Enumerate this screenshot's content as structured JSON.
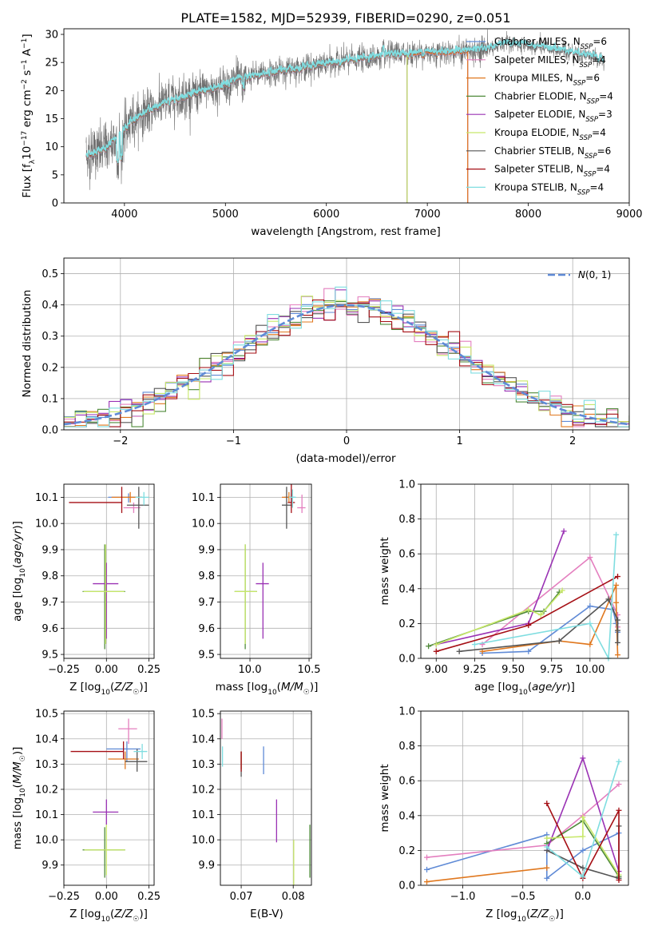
{
  "title": "PLATE=1582, MJD=52939, FIBERID=0290, z=0.051",
  "colors": {
    "chabrier_miles": "#5f8ad6",
    "salpeter_miles": "#e47fbf",
    "kroupa_miles": "#e0781f",
    "chabrier_elodie": "#4f8a3a",
    "salpeter_elodie": "#9a32b4",
    "kroupa_elodie": "#c8e86a",
    "chabrier_stelib": "#555555",
    "salpeter_stelib": "#a50f15",
    "kroupa_stelib": "#7fdde0",
    "normal": "#5f8ad6"
  },
  "chart_data": [
    {
      "id": "spectrum",
      "type": "line",
      "xlabel": "wavelength [Angstrom, rest frame]",
      "ylabel": "Flux [f_λ10⁻¹⁷ erg cm⁻² s⁻¹ A⁻¹]",
      "xlim": [
        3400,
        9000
      ],
      "ylim": [
        0,
        31
      ],
      "xticks": [
        4000,
        5000,
        6000,
        7000,
        8000,
        9000
      ],
      "yticks": [
        0,
        5,
        10,
        15,
        20,
        25,
        30
      ],
      "grid": false,
      "legend_position": "right",
      "continuum": {
        "x": [
          3620,
          3800,
          3950,
          4100,
          4300,
          4500,
          4700,
          4900,
          5100,
          5300,
          5500,
          5700,
          5900,
          6100,
          6300,
          6500,
          6700,
          6900,
          7100,
          7300,
          7450,
          7600,
          7800,
          8000,
          8200,
          8400,
          8600,
          8750
        ],
        "y": [
          8.5,
          9.5,
          12.0,
          15.0,
          17.0,
          18.5,
          19.5,
          20.5,
          21.8,
          22.7,
          23.4,
          24.0,
          24.5,
          25.0,
          25.6,
          26.1,
          26.4,
          26.7,
          26.9,
          27.0,
          27.1,
          27.6,
          28.4,
          28.0,
          27.5,
          27.0,
          26.3,
          25.2
        ]
      },
      "series": [
        {
          "name": "Chabrier MILES, N_SSP=6",
          "key": "chabrier_miles"
        },
        {
          "name": "Salpeter MILES, N_SSP=4",
          "key": "salpeter_miles"
        },
        {
          "name": "Kroupa MILES, N_SSP=6",
          "key": "kroupa_miles"
        },
        {
          "name": "Chabrier ELODIE, N_SSP=4",
          "key": "chabrier_elodie"
        },
        {
          "name": "Salpeter ELODIE, N_SSP=3",
          "key": "salpeter_elodie"
        },
        {
          "name": "Kroupa ELODIE, N_SSP=4",
          "key": "kroupa_elodie"
        },
        {
          "name": "Chabrier STELIB, N_SSP=6",
          "key": "chabrier_stelib"
        },
        {
          "name": "Salpeter STELIB, N_SSP=4",
          "key": "salpeter_stelib"
        },
        {
          "name": "Kroupa STELIB, N_SSP=4",
          "key": "kroupa_stelib"
        }
      ],
      "model_end": {
        "miles": 7400,
        "elodie": 6800
      }
    },
    {
      "id": "residual_hist",
      "type": "line",
      "xlabel": "(data-model)/error",
      "ylabel": "Normed distribution",
      "xlim": [
        -2.5,
        2.5
      ],
      "ylim": [
        0,
        0.55
      ],
      "xticks": [
        -2,
        -1,
        0,
        1,
        2
      ],
      "yticks": [
        0.0,
        0.1,
        0.2,
        0.3,
        0.4,
        0.5
      ],
      "grid": true,
      "legend_position": "top-right",
      "normal_label": "N(0,1)",
      "bin_width": 0.1
    },
    {
      "id": "age_vs_Z",
      "type": "scatter",
      "xlabel": "Z [log10(Z/Z☉)]",
      "ylabel": "age [log10(age/yr)]",
      "xlim": [
        -0.25,
        0.28
      ],
      "ylim": [
        9.485,
        10.15
      ],
      "xticks": [
        -0.25,
        0.0,
        0.25
      ],
      "yticks": [
        9.5,
        9.6,
        9.7,
        9.8,
        9.9,
        10.0,
        10.1
      ],
      "grid": true,
      "points": [
        {
          "key": "chabrier_miles",
          "x": 0.13,
          "y": 10.1,
          "xe": [
            0.12,
            0.08
          ],
          "ye": [
            0.02,
            0.015
          ]
        },
        {
          "key": "salpeter_miles",
          "x": 0.16,
          "y": 10.06,
          "xe": [
            0.06,
            0.04
          ],
          "ye": [
            0.02,
            0.02
          ]
        },
        {
          "key": "kroupa_miles",
          "x": 0.14,
          "y": 10.1,
          "xe": [
            0.11,
            0.07
          ],
          "ye": [
            0.02,
            0.02
          ]
        },
        {
          "key": "chabrier_elodie",
          "x": -0.01,
          "y": 9.74,
          "xe": [
            0.13,
            0.12
          ],
          "ye": [
            0.22,
            0.18
          ]
        },
        {
          "key": "salpeter_elodie",
          "x": 0.0,
          "y": 9.77,
          "xe": [
            0.08,
            0.07
          ],
          "ye": [
            0.21,
            0.08
          ]
        },
        {
          "key": "kroupa_elodie",
          "x": -0.005,
          "y": 9.74,
          "xe": [
            0.13,
            0.11
          ],
          "ye": [
            0.2,
            0.18
          ]
        },
        {
          "key": "chabrier_stelib",
          "x": 0.19,
          "y": 10.07,
          "xe": [
            0.07,
            0.06
          ],
          "ye": [
            0.09,
            0.07
          ]
        },
        {
          "key": "salpeter_stelib",
          "x": 0.09,
          "y": 10.08,
          "xe": [
            0.31,
            0.0
          ],
          "ye": [
            0.04,
            0.06
          ]
        },
        {
          "key": "kroupa_stelib",
          "x": 0.22,
          "y": 10.1,
          "xe": [
            0.05,
            0.03
          ],
          "ye": [
            0.03,
            0.02
          ]
        }
      ]
    },
    {
      "id": "age_vs_mass",
      "type": "scatter",
      "xlabel": "mass [log10(M/M☉)]",
      "ylabel": "",
      "xlim": [
        9.75,
        10.52
      ],
      "ylim": [
        9.485,
        10.15
      ],
      "xticks": [
        10.0,
        10.5
      ],
      "yticks": [
        9.5,
        9.6,
        9.7,
        9.8,
        9.9,
        10.0,
        10.1
      ],
      "grid": true,
      "points": [
        {
          "key": "chabrier_miles",
          "x": 10.35,
          "y": 10.1,
          "xe": [
            0.06,
            0.03
          ],
          "ye": [
            0.02,
            0.015
          ]
        },
        {
          "key": "salpeter_miles",
          "x": 10.44,
          "y": 10.06,
          "xe": [
            0.04,
            0.03
          ],
          "ye": [
            0.02,
            0.05
          ]
        },
        {
          "key": "kroupa_miles",
          "x": 10.33,
          "y": 10.1,
          "xe": [
            0.06,
            0.03
          ],
          "ye": [
            0.02,
            0.02
          ]
        },
        {
          "key": "chabrier_elodie",
          "x": 9.96,
          "y": 9.74,
          "xe": [
            0.09,
            0.1
          ],
          "ye": [
            0.22,
            0.18
          ]
        },
        {
          "key": "salpeter_elodie",
          "x": 10.11,
          "y": 9.77,
          "xe": [
            0.06,
            0.05
          ],
          "ye": [
            0.21,
            0.08
          ]
        },
        {
          "key": "kroupa_elodie",
          "x": 9.96,
          "y": 9.74,
          "xe": [
            0.09,
            0.1
          ],
          "ye": [
            0.2,
            0.18
          ]
        },
        {
          "key": "chabrier_stelib",
          "x": 10.31,
          "y": 10.07,
          "xe": [
            0.04,
            0.05
          ],
          "ye": [
            0.09,
            0.07
          ]
        },
        {
          "key": "salpeter_stelib",
          "x": 10.35,
          "y": 10.08,
          "xe": [
            0.03,
            0.03
          ],
          "ye": [
            0.04,
            0.07
          ]
        },
        {
          "key": "kroupa_stelib",
          "x": 10.36,
          "y": 10.1,
          "xe": [
            0.03,
            0.03
          ],
          "ye": [
            0.04,
            0.03
          ]
        }
      ]
    },
    {
      "id": "weight_vs_age",
      "type": "line",
      "xlabel": "age [log10(age/yr)]",
      "ylabel": "mass weight",
      "xlim": [
        8.9,
        10.25
      ],
      "ylim": [
        0,
        1.0
      ],
      "xticks": [
        9.0,
        9.25,
        9.5,
        9.75,
        10.0
      ],
      "yticks": [
        0.0,
        0.2,
        0.4,
        0.6,
        0.8,
        1.0
      ],
      "grid": true,
      "series": [
        {
          "key": "chabrier_miles",
          "x": [
            9.3,
            9.6,
            10.0,
            10.15,
            10.17,
            10.18
          ],
          "y": [
            0.03,
            0.04,
            0.3,
            0.28,
            0.2,
            0.15
          ]
        },
        {
          "key": "salpeter_miles",
          "x": [
            9.3,
            10.0,
            10.18,
            10.18
          ],
          "y": [
            0.08,
            0.58,
            0.25,
            0.18
          ]
        },
        {
          "key": "kroupa_miles",
          "x": [
            9.3,
            9.8,
            10.0,
            10.17,
            10.17,
            10.18
          ],
          "y": [
            0.04,
            0.1,
            0.08,
            0.42,
            0.32,
            0.02
          ]
        },
        {
          "key": "chabrier_elodie",
          "x": [
            8.95,
            9.6,
            9.7,
            9.8
          ],
          "y": [
            0.07,
            0.27,
            0.27,
            0.38
          ]
        },
        {
          "key": "salpeter_elodie",
          "x": [
            9.0,
            9.6,
            9.83
          ],
          "y": [
            0.08,
            0.2,
            0.73
          ]
        },
        {
          "key": "kroupa_elodie",
          "x": [
            9.0,
            9.6,
            9.68,
            9.82
          ],
          "y": [
            0.08,
            0.28,
            0.25,
            0.39
          ]
        },
        {
          "key": "chabrier_stelib",
          "x": [
            9.15,
            9.8,
            10.12,
            10.18,
            10.18,
            10.18
          ],
          "y": [
            0.04,
            0.1,
            0.34,
            0.22,
            0.16,
            0.09
          ]
        },
        {
          "key": "salpeter_stelib",
          "x": [
            9.0,
            9.6,
            10.18
          ],
          "y": [
            0.04,
            0.19,
            0.47
          ]
        },
        {
          "key": "kroupa_stelib",
          "x": [
            9.25,
            10.0,
            10.12,
            10.17
          ],
          "y": [
            0.08,
            0.2,
            0.0,
            0.71
          ]
        }
      ]
    },
    {
      "id": "mass_vs_Z",
      "type": "scatter",
      "xlabel": "Z [log10(Z/Z☉)]",
      "ylabel": "mass [log10(M/M☉)]",
      "xlim": [
        -0.25,
        0.28
      ],
      "ylim": [
        9.82,
        10.51
      ],
      "xticks": [
        -0.25,
        0.0,
        0.25
      ],
      "yticks": [
        9.9,
        10.0,
        10.1,
        10.2,
        10.3,
        10.4,
        10.5
      ],
      "grid": true,
      "points": [
        {
          "key": "chabrier_miles",
          "x": 0.12,
          "y": 10.36,
          "xe": [
            0.12,
            0.08
          ],
          "ye": [
            0.05,
            0.03
          ]
        },
        {
          "key": "salpeter_miles",
          "x": 0.13,
          "y": 10.44,
          "xe": [
            0.06,
            0.05
          ],
          "ye": [
            0.06,
            0.04
          ]
        },
        {
          "key": "kroupa_miles",
          "x": 0.11,
          "y": 10.32,
          "xe": [
            0.1,
            0.08
          ],
          "ye": [
            0.04,
            0.03
          ]
        },
        {
          "key": "chabrier_elodie",
          "x": -0.01,
          "y": 9.96,
          "xe": [
            0.13,
            0.12
          ],
          "ye": [
            0.11,
            0.09
          ]
        },
        {
          "key": "salpeter_elodie",
          "x": 0.0,
          "y": 10.11,
          "xe": [
            0.08,
            0.07
          ],
          "ye": [
            0.05,
            0.05
          ]
        },
        {
          "key": "kroupa_elodie",
          "x": 0.0,
          "y": 9.96,
          "xe": [
            0.13,
            0.11
          ],
          "ye": [
            0.1,
            0.1
          ]
        },
        {
          "key": "chabrier_stelib",
          "x": 0.18,
          "y": 10.31,
          "xe": [
            0.07,
            0.06
          ],
          "ye": [
            0.04,
            0.05
          ]
        },
        {
          "key": "salpeter_stelib",
          "x": 0.1,
          "y": 10.35,
          "xe": [
            0.31,
            0.0
          ],
          "ye": [
            0.03,
            0.04
          ]
        },
        {
          "key": "kroupa_stelib",
          "x": 0.21,
          "y": 10.35,
          "xe": [
            0.05,
            0.03
          ],
          "ye": [
            0.03,
            0.03
          ]
        }
      ]
    },
    {
      "id": "mass_vs_ebv",
      "type": "scatter",
      "xlabel": "E(B-V)",
      "ylabel": "",
      "xlim": [
        0.066,
        0.0835
      ],
      "ylim": [
        9.82,
        10.51
      ],
      "xticks": [
        0.07,
        0.08
      ],
      "yticks": [
        9.9,
        10.0,
        10.1,
        10.2,
        10.3,
        10.4,
        10.5
      ],
      "grid": true,
      "points": [
        {
          "key": "chabrier_miles",
          "x": 0.0743,
          "y": 10.31,
          "xe": [
            0,
            0
          ],
          "ye": [
            0.05,
            0.06
          ]
        },
        {
          "key": "salpeter_miles",
          "x": 0.0663,
          "y": 10.44,
          "xe": [
            0,
            0
          ],
          "ye": [
            0.04,
            0.04
          ]
        },
        {
          "key": "kroupa_miles",
          "x": 0.07,
          "y": 10.32,
          "xe": [
            0,
            0
          ],
          "ye": [
            0.04,
            0.03
          ]
        },
        {
          "key": "chabrier_elodie",
          "x": 0.0832,
          "y": 9.95,
          "xe": [
            0,
            0
          ],
          "ye": [
            0.1,
            0.11
          ]
        },
        {
          "key": "salpeter_elodie",
          "x": 0.0768,
          "y": 10.07,
          "xe": [
            0,
            0
          ],
          "ye": [
            0.08,
            0.09
          ]
        },
        {
          "key": "kroupa_elodie",
          "x": 0.0801,
          "y": 9.92,
          "xe": [
            0,
            0
          ],
          "ye": [
            0.1,
            0.08
          ]
        },
        {
          "key": "chabrier_stelib",
          "x": 0.07,
          "y": 10.3,
          "xe": [
            0,
            0
          ],
          "ye": [
            0.05,
            0.05
          ]
        },
        {
          "key": "salpeter_stelib",
          "x": 0.07,
          "y": 10.3,
          "xe": [
            0,
            0
          ],
          "ye": [
            0.03,
            0.05
          ]
        },
        {
          "key": "kroupa_stelib",
          "x": 0.0664,
          "y": 10.34,
          "xe": [
            0,
            0
          ],
          "ye": [
            0.05,
            0.03
          ]
        }
      ]
    },
    {
      "id": "weight_vs_Z",
      "type": "line",
      "xlabel": "Z [log10(Z/Z☉)]",
      "ylabel": "mass weight",
      "xlim": [
        -1.35,
        0.38
      ],
      "ylim": [
        0,
        1.0
      ],
      "xticks": [
        -1.0,
        -0.5,
        0.0
      ],
      "yticks": [
        0.0,
        0.2,
        0.4,
        0.6,
        0.8,
        1.0
      ],
      "grid": true,
      "series": [
        {
          "key": "chabrier_miles",
          "x": [
            -1.3,
            -0.3,
            -0.3,
            0.0,
            0.3
          ],
          "y": [
            0.09,
            0.29,
            0.04,
            0.2,
            0.3
          ]
        },
        {
          "key": "salpeter_miles",
          "x": [
            -1.3,
            -0.3,
            0.0,
            0.3
          ],
          "y": [
            0.16,
            0.23,
            0.4,
            0.58
          ]
        },
        {
          "key": "kroupa_miles",
          "x": [
            -1.3,
            -0.3
          ],
          "y": [
            0.02,
            0.1
          ]
        },
        {
          "key": "chabrier_elodie",
          "x": [
            -0.3,
            0.0,
            0.3
          ],
          "y": [
            0.24,
            0.37,
            0.05
          ]
        },
        {
          "key": "salpeter_elodie",
          "x": [
            -0.3,
            0.0,
            0.3
          ],
          "y": [
            0.2,
            0.73,
            0.08
          ]
        },
        {
          "key": "kroupa_elodie",
          "x": [
            -0.3,
            0.0,
            0.0,
            0.3
          ],
          "y": [
            0.27,
            0.28,
            0.39,
            0.06
          ]
        },
        {
          "key": "chabrier_stelib",
          "x": [
            -0.3,
            0.0,
            0.3,
            0.3
          ],
          "y": [
            0.2,
            0.1,
            0.04,
            0.34
          ]
        },
        {
          "key": "salpeter_stelib",
          "x": [
            -0.3,
            0.0,
            0.3,
            0.3
          ],
          "y": [
            0.47,
            0.04,
            0.43,
            0.03
          ]
        },
        {
          "key": "kroupa_stelib",
          "x": [
            -0.3,
            0.0,
            0.3
          ],
          "y": [
            0.22,
            0.05,
            0.71
          ]
        }
      ]
    }
  ]
}
